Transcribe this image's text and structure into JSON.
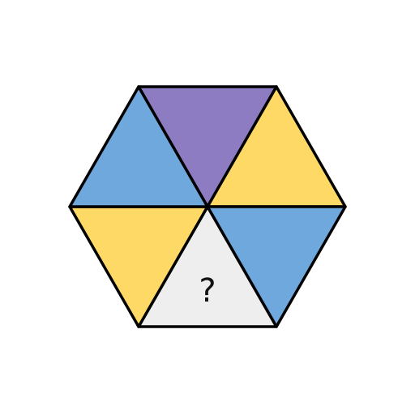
{
  "puzzle": {
    "triangles": [
      {
        "id": "top",
        "color": "#8e7cc3"
      },
      {
        "id": "upper-right",
        "color": "#ffd966"
      },
      {
        "id": "lower-right",
        "color": "#6fa8dc"
      },
      {
        "id": "bottom",
        "color": "#eeeeee",
        "label": "?"
      },
      {
        "id": "lower-left",
        "color": "#ffd966"
      },
      {
        "id": "upper-left",
        "color": "#6fa8dc"
      }
    ],
    "stroke_color": "#000000"
  }
}
